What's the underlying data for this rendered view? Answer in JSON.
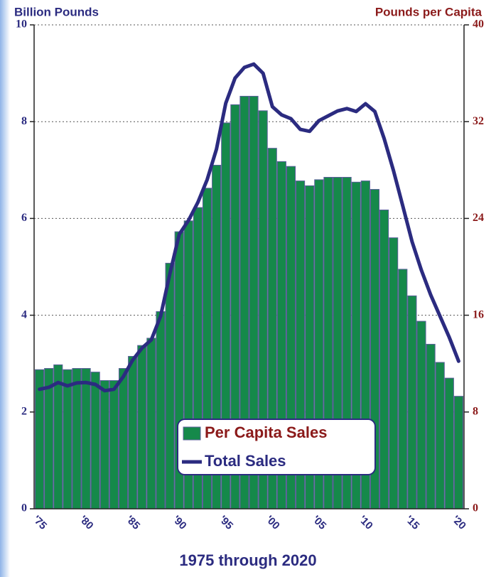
{
  "chart_data": {
    "type": "bar",
    "x_label": "1975 through 2020",
    "y_label": "Billion Pounds",
    "y2_label": "Pounds per Capita",
    "categories": [
      "'75",
      null,
      null,
      null,
      null,
      "'80",
      null,
      null,
      null,
      null,
      "'85",
      null,
      null,
      null,
      null,
      "'90",
      null,
      null,
      null,
      null,
      "'95",
      null,
      null,
      null,
      null,
      "'00",
      null,
      null,
      null,
      null,
      "'05",
      null,
      null,
      null,
      null,
      "'10",
      null,
      null,
      null,
      null,
      "'15",
      null,
      null,
      null,
      null,
      "'20"
    ],
    "series": [
      {
        "name": "Per Capita Sales",
        "type": "bar",
        "axis": "y2",
        "color": "#15894a",
        "values": [
          11.5,
          11.6,
          11.9,
          11.5,
          11.6,
          11.6,
          11.3,
          10.6,
          10.6,
          11.6,
          12.6,
          13.5,
          14.1,
          16.3,
          20.3,
          22.9,
          23.8,
          24.9,
          26.5,
          28.4,
          31.9,
          33.4,
          34.1,
          34.1,
          32.9,
          29.8,
          28.7,
          28.3,
          27.1,
          26.7,
          27.2,
          27.4,
          27.4,
          27.4,
          27.0,
          27.1,
          26.4,
          24.7,
          22.4,
          19.8,
          17.6,
          15.5,
          13.6,
          12.1,
          10.8,
          9.3
        ]
      },
      {
        "name": "Total Sales",
        "type": "line",
        "axis": "y",
        "color": "#2b2b80",
        "values": [
          2.47,
          2.51,
          2.61,
          2.54,
          2.6,
          2.61,
          2.57,
          2.44,
          2.47,
          2.73,
          3.07,
          3.32,
          3.49,
          3.98,
          4.86,
          5.67,
          5.96,
          6.33,
          6.8,
          7.43,
          8.38,
          8.9,
          9.12,
          9.19,
          9.0,
          8.31,
          8.14,
          8.06,
          7.84,
          7.8,
          8.02,
          8.12,
          8.22,
          8.27,
          8.21,
          8.37,
          8.21,
          7.65,
          6.99,
          6.26,
          5.52,
          4.93,
          4.42,
          3.98,
          3.54,
          3.05
        ]
      }
    ],
    "ylim": [
      0,
      10
    ],
    "yticks": [
      0,
      2,
      4,
      6,
      8,
      10
    ],
    "y2lim": [
      0,
      40
    ],
    "y2ticks": [
      0,
      8,
      16,
      24,
      32,
      40
    ],
    "grid": true
  }
}
